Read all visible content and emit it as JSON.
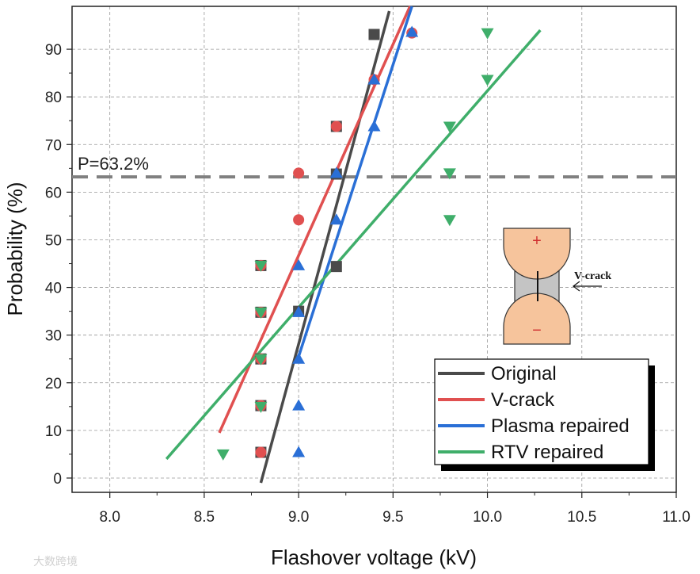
{
  "chart_data": {
    "type": "scatter",
    "xlabel": "Flashover voltage (kV)",
    "ylabel": "Probability (%)",
    "xlim": [
      7.8,
      11.0
    ],
    "ylim": [
      -3,
      99
    ],
    "x_ticks": [
      "8.0",
      "8.5",
      "9.0",
      "9.5",
      "10.0",
      "10.5",
      "11.0"
    ],
    "y_ticks": [
      "0",
      "10",
      "20",
      "30",
      "40",
      "50",
      "60",
      "70",
      "80",
      "90"
    ],
    "grid": true,
    "legend_position": "bottom-right",
    "reference_line": {
      "label": "P=63.2%",
      "y": 63.2
    },
    "series": [
      {
        "name": "Original",
        "color": "#4a4a4a",
        "marker": "square",
        "points": [
          [
            8.8,
            5.4
          ],
          [
            8.8,
            15.2
          ],
          [
            8.8,
            25.0
          ],
          [
            8.8,
            34.8
          ],
          [
            8.8,
            44.6
          ],
          [
            9.0,
            35.0
          ],
          [
            9.2,
            44.4
          ],
          [
            9.2,
            63.8
          ],
          [
            9.2,
            73.8
          ],
          [
            9.4,
            93.1
          ]
        ],
        "fit": [
          [
            8.8,
            -1.0
          ],
          [
            9.48,
            98.0
          ]
        ]
      },
      {
        "name": "V-crack",
        "color": "#e05050",
        "marker": "circle",
        "points": [
          [
            8.8,
            5.4
          ],
          [
            8.8,
            15.2
          ],
          [
            8.8,
            25.0
          ],
          [
            8.8,
            34.8
          ],
          [
            8.8,
            44.6
          ],
          [
            9.0,
            54.2
          ],
          [
            9.0,
            64.0
          ],
          [
            9.2,
            73.8
          ],
          [
            9.4,
            83.6
          ],
          [
            9.6,
            93.4
          ]
        ],
        "fit": [
          [
            8.58,
            9.5
          ],
          [
            9.59,
            99.0
          ]
        ]
      },
      {
        "name": "Plasma repaired",
        "color": "#2a6fd6",
        "marker": "triangle-up",
        "points": [
          [
            9.0,
            5.4
          ],
          [
            9.0,
            15.2
          ],
          [
            9.0,
            25.0
          ],
          [
            9.0,
            34.8
          ],
          [
            9.0,
            44.6
          ],
          [
            9.2,
            54.2
          ],
          [
            9.2,
            64.0
          ],
          [
            9.4,
            73.8
          ],
          [
            9.4,
            83.6
          ],
          [
            9.6,
            93.6
          ]
        ],
        "fit": [
          [
            9.0,
            25.5
          ],
          [
            9.6,
            99.0
          ]
        ]
      },
      {
        "name": "RTV repaired",
        "color": "#3fae6a",
        "marker": "triangle-down",
        "points": [
          [
            8.6,
            5.0
          ],
          [
            8.8,
            15.0
          ],
          [
            8.8,
            25.0
          ],
          [
            8.8,
            34.8
          ],
          [
            8.8,
            44.6
          ],
          [
            9.8,
            54.2
          ],
          [
            9.8,
            64.0
          ],
          [
            9.8,
            73.8
          ],
          [
            10.0,
            83.6
          ],
          [
            10.0,
            93.4
          ]
        ],
        "fit": [
          [
            8.3,
            4.0
          ],
          [
            10.28,
            94.0
          ]
        ]
      }
    ]
  },
  "inset": {
    "plus": "+",
    "minus": "−",
    "label": "V-crack"
  },
  "watermark": "大数跨境"
}
